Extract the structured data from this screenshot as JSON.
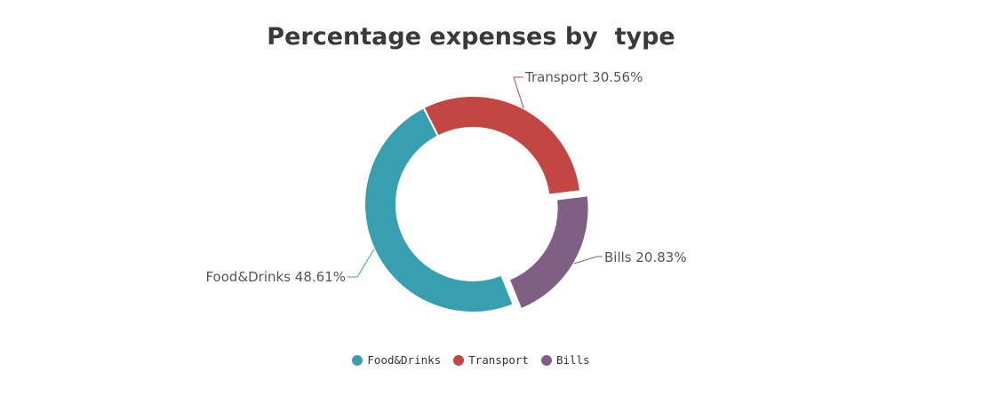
{
  "chart_data": {
    "type": "pie",
    "title": "Percentage expenses by  type",
    "donut": true,
    "slices": [
      {
        "name": "Food&Drinks",
        "value": 48.61,
        "label": "Food&Drinks 48.61%",
        "color": "#389FB0"
      },
      {
        "name": "Transport",
        "value": 30.56,
        "label": "Transport 30.56%",
        "color": "#C24642"
      },
      {
        "name": "Bills",
        "value": 20.83,
        "label": "Bills 20.83%",
        "color": "#7F6084",
        "exploded": true
      }
    ],
    "legend_position": "bottom"
  }
}
